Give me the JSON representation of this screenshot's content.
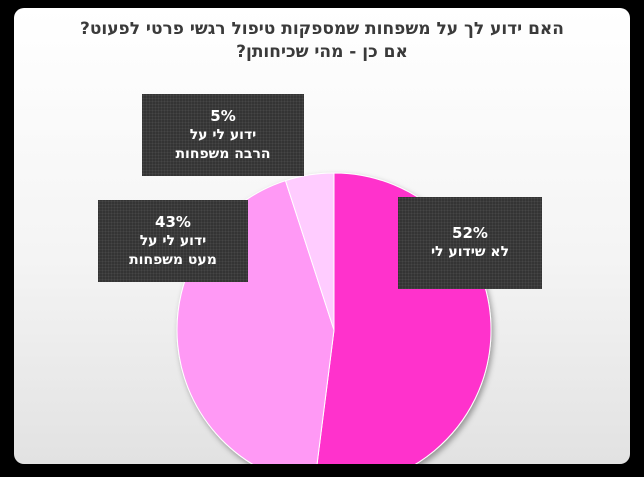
{
  "chart_data": {
    "type": "pie",
    "title_lines": [
      "האם ידוע לך על משפחות שמספקות טיפול רגשי פרטי לפעוט?",
      "אם כן - מהי שכיחותן?"
    ],
    "slices": [
      {
        "label_lines": [
          "לא שידוע לי"
        ],
        "value": 52,
        "value_label": "52%",
        "color": "#ff33cc"
      },
      {
        "label_lines": [
          "ידוע לי על",
          "מעט משפחות"
        ],
        "value": 43,
        "value_label": "43%",
        "color": "#ff99f5"
      },
      {
        "label_lines": [
          "ידוע לי על",
          "הרבה משפחות"
        ],
        "value": 5,
        "value_label": "5%",
        "color": "#ffccff"
      }
    ]
  }
}
